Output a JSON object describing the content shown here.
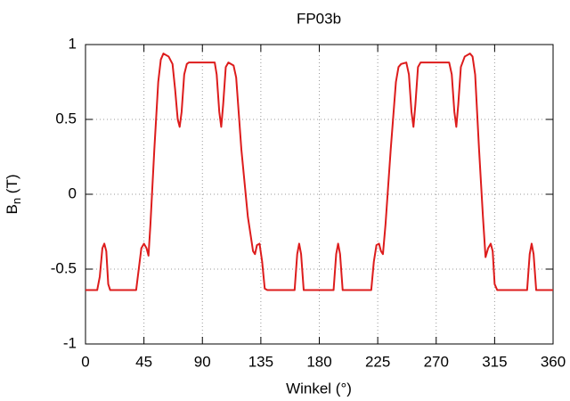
{
  "chart_data": {
    "type": "line",
    "title": "FP03b",
    "xlabel": "Winkel (°)",
    "ylabel": [
      "B",
      "n",
      " (T)"
    ],
    "xlim": [
      0,
      360
    ],
    "xticks": [
      0,
      45,
      90,
      135,
      180,
      225,
      270,
      315,
      360
    ],
    "ylim": [
      -1,
      1
    ],
    "yticks": [
      -1,
      -0.5,
      0,
      0.5,
      1
    ],
    "grid": true,
    "x": [
      0,
      9,
      11,
      13,
      14.5,
      16,
      17.5,
      19,
      39,
      41,
      43,
      45,
      47,
      48.5,
      50,
      53,
      56,
      58,
      60,
      64,
      67,
      69,
      71,
      72.5,
      74,
      76,
      78,
      79.5,
      99.5,
      101,
      103,
      104.5,
      106,
      108,
      110,
      114,
      116,
      120,
      125,
      129,
      130.5,
      132,
      134,
      136,
      138,
      140,
      161,
      163,
      164.5,
      166,
      168,
      191,
      193,
      194.5,
      196,
      198,
      220,
      222,
      224,
      226,
      227.5,
      229,
      231,
      235,
      239,
      241,
      243,
      247,
      249,
      251,
      252.5,
      254,
      256,
      258,
      280,
      282,
      284,
      285.5,
      287,
      289,
      292,
      296,
      298,
      300,
      303,
      306,
      308,
      310,
      312,
      313.5,
      315,
      317,
      340,
      342,
      343.5,
      345,
      347,
      360
    ],
    "series": [
      {
        "color": "#dd1c1c",
        "values": [
          -0.64,
          -0.64,
          -0.55,
          -0.36,
          -0.33,
          -0.38,
          -0.6,
          -0.64,
          -0.64,
          -0.5,
          -0.36,
          -0.33,
          -0.36,
          -0.41,
          -0.2,
          0.3,
          0.75,
          0.9,
          0.94,
          0.92,
          0.87,
          0.7,
          0.5,
          0.45,
          0.55,
          0.8,
          0.87,
          0.88,
          0.88,
          0.8,
          0.55,
          0.45,
          0.6,
          0.85,
          0.88,
          0.86,
          0.78,
          0.3,
          -0.15,
          -0.38,
          -0.4,
          -0.34,
          -0.33,
          -0.45,
          -0.63,
          -0.64,
          -0.64,
          -0.4,
          -0.33,
          -0.4,
          -0.64,
          -0.64,
          -0.4,
          -0.33,
          -0.4,
          -0.64,
          -0.64,
          -0.45,
          -0.34,
          -0.33,
          -0.38,
          -0.4,
          -0.2,
          0.3,
          0.75,
          0.85,
          0.87,
          0.88,
          0.8,
          0.55,
          0.45,
          0.6,
          0.85,
          0.88,
          0.88,
          0.8,
          0.55,
          0.45,
          0.6,
          0.85,
          0.92,
          0.94,
          0.92,
          0.8,
          0.3,
          -0.15,
          -0.42,
          -0.36,
          -0.33,
          -0.38,
          -0.6,
          -0.64,
          -0.64,
          -0.4,
          -0.33,
          -0.4,
          -0.64,
          -0.64
        ]
      }
    ]
  }
}
